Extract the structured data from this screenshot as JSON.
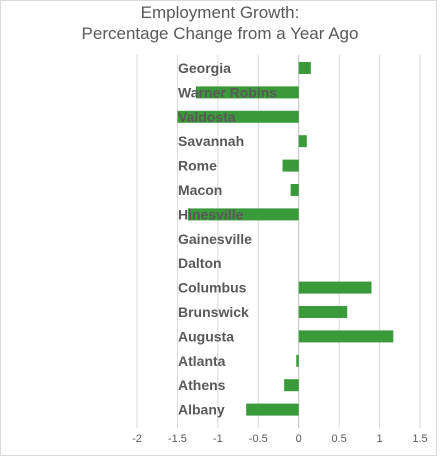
{
  "chart_data": {
    "type": "bar",
    "orientation": "horizontal",
    "title": "Employment Growth:",
    "subtitle": "Percentage Change from a Year Ago",
    "categories": [
      "Georgia",
      "Warner Robins",
      "Valdosta",
      "Savannah",
      "Rome",
      "Macon",
      "Hinesville",
      "Gainesville",
      "Dalton",
      "Columbus",
      "Brunswick",
      "Augusta",
      "Atlanta",
      "Athens",
      "Albany"
    ],
    "values": [
      0.15,
      -1.27,
      -1.5,
      0.1,
      -0.2,
      -0.1,
      -1.37,
      0,
      0,
      0.9,
      0.6,
      1.17,
      -0.03,
      -0.18,
      -0.65
    ],
    "xlim": [
      -2,
      1.5
    ],
    "ticks": [
      "-2",
      "-1.5",
      "-1",
      "-0.5",
      "0",
      "0.5",
      "1",
      "1.5"
    ],
    "tick_values": [
      -2,
      -1.5,
      -1,
      -0.5,
      0,
      0.5,
      1,
      1.5
    ],
    "grid": true,
    "colors": {
      "bar": "#3a9a3a",
      "grid": "#d9d9d9",
      "axis": "#bfbfbf",
      "text": "#595959"
    }
  }
}
